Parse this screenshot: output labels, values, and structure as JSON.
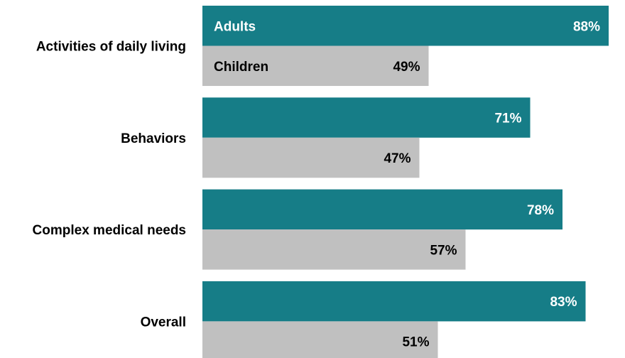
{
  "chart_data": {
    "type": "bar",
    "orientation": "horizontal",
    "categories": [
      "Activities of daily living",
      "Behaviors",
      "Complex medical needs",
      "Overall"
    ],
    "series": [
      {
        "name": "Adults",
        "values": [
          88,
          71,
          78,
          83
        ],
        "labels": [
          "88%",
          "71%",
          "78%",
          "83%"
        ],
        "color": "#167d87",
        "label_color": "#ffffff"
      },
      {
        "name": "Children",
        "values": [
          49,
          47,
          57,
          51
        ],
        "labels": [
          "49%",
          "47%",
          "57%",
          "51%"
        ],
        "color": "#c0c0c0",
        "label_color": "#000000"
      }
    ],
    "xlim": [
      0,
      100
    ],
    "grid": false,
    "legend": "inside-first-bars"
  }
}
